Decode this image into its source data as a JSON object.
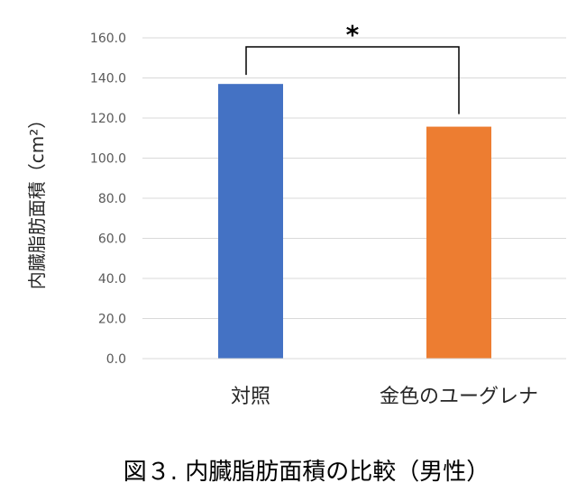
{
  "chart_data": {
    "type": "bar",
    "categories": [
      "対照",
      "金色のユーグレナ"
    ],
    "values": [
      137.0,
      115.7
    ],
    "ylabel": "内臓脂肪面積（cm²）",
    "ylim": [
      0,
      160
    ],
    "yticks": [
      "0.0",
      "20.0",
      "40.0",
      "60.0",
      "80.0",
      "100.0",
      "120.0",
      "140.0",
      "160.0"
    ],
    "grid": true,
    "significance": {
      "between": [
        "対照",
        "金色のユーグレナ"
      ],
      "label": "*"
    },
    "colors": [
      "#4472c4",
      "#ed7d31"
    ]
  },
  "caption": "図３. 内臓脂肪面積の比較（男性）"
}
